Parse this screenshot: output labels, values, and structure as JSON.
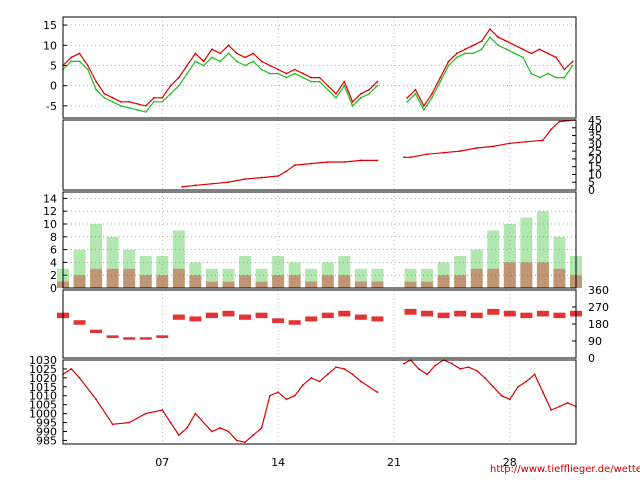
{
  "credit_text": "http://www.tiefflieger.de/wetter/",
  "colors": {
    "red": "#dd0000",
    "green": "#22bb22",
    "grid": "#999999",
    "axis": "#000000"
  },
  "x_axis": {
    "range": [
      1,
      32
    ],
    "tick_days": [
      7,
      14,
      21,
      28
    ],
    "tick_labels": [
      "07",
      "14",
      "21",
      "28"
    ]
  },
  "chart_data": [
    {
      "type": "line",
      "ylim": [
        -8,
        17
      ],
      "yticks": [
        -5,
        0,
        5,
        10,
        15
      ],
      "grid": true,
      "gap": [
        20.1,
        21.6
      ],
      "series": [
        {
          "color": "#dd0000",
          "x": [
            1,
            1.5,
            2,
            2.5,
            3,
            3.5,
            4,
            4.5,
            5,
            5.5,
            6,
            6.5,
            7,
            7.5,
            8,
            8.5,
            9,
            9.5,
            10,
            10.5,
            11,
            11.5,
            12,
            12.5,
            13,
            13.5,
            14,
            14.5,
            15,
            15.5,
            16,
            16.5,
            17,
            17.5,
            18,
            18.5,
            19,
            19.5,
            20,
            21.8,
            22.3,
            22.8,
            23.3,
            23.8,
            24.3,
            24.8,
            25.3,
            25.8,
            26.3,
            26.8,
            27.3,
            27.8,
            28.3,
            28.8,
            29.3,
            29.8,
            30.3,
            30.8,
            31.3,
            31.8
          ],
          "y": [
            5,
            7,
            8,
            5,
            1,
            -2,
            -3,
            -4,
            -4,
            -4.5,
            -5,
            -3,
            -3,
            0,
            2,
            5,
            8,
            6,
            9,
            8,
            10,
            8,
            7,
            8,
            6,
            5,
            4,
            3,
            4,
            3,
            2,
            2,
            0,
            -2,
            1,
            -4,
            -2,
            -1,
            1,
            -3,
            -1,
            -5,
            -2,
            2,
            6,
            8,
            9,
            10,
            11,
            14,
            12,
            11,
            10,
            9,
            8,
            9,
            8,
            7,
            4,
            6
          ]
        },
        {
          "color": "#22bb22",
          "x": [
            1,
            1.5,
            2,
            2.5,
            3,
            3.5,
            4,
            4.5,
            5,
            5.5,
            6,
            6.5,
            7,
            7.5,
            8,
            8.5,
            9,
            9.5,
            10,
            10.5,
            11,
            11.5,
            12,
            12.5,
            13,
            13.5,
            14,
            14.5,
            15,
            15.5,
            16,
            16.5,
            17,
            17.5,
            18,
            18.5,
            19,
            19.5,
            20,
            21.8,
            22.3,
            22.8,
            23.3,
            23.8,
            24.3,
            24.8,
            25.3,
            25.8,
            26.3,
            26.8,
            27.3,
            27.8,
            28.3,
            28.8,
            29.3,
            29.8,
            30.3,
            30.8,
            31.3,
            31.8
          ],
          "y": [
            4,
            6,
            6,
            4,
            -1,
            -3,
            -4,
            -5,
            -5.5,
            -6,
            -6.5,
            -4,
            -4,
            -2,
            0,
            3,
            6,
            5,
            7,
            6,
            8,
            6,
            5,
            6,
            4,
            3,
            3,
            2,
            3,
            2,
            1,
            1,
            -1,
            -3,
            0,
            -5,
            -3,
            -2,
            0,
            -4,
            -2,
            -6,
            -3,
            1,
            5,
            7,
            8,
            8,
            9,
            12,
            10,
            9,
            8,
            7,
            3,
            2,
            3,
            2,
            2,
            5
          ]
        }
      ]
    },
    {
      "type": "line",
      "ylim": [
        0,
        45
      ],
      "yticks": [
        0,
        5,
        10,
        15,
        20,
        25,
        30,
        35,
        40,
        45
      ],
      "grid": false,
      "gap": [
        20.1,
        21.6
      ],
      "series": [
        {
          "color": "#dd0000",
          "x": [
            8.2,
            9,
            10,
            11,
            12,
            13,
            14,
            14.5,
            15,
            16,
            17,
            18,
            19,
            20,
            21.6,
            22,
            23,
            24,
            25,
            26,
            27,
            28,
            29,
            30,
            30.5,
            31,
            31.9
          ],
          "y": [
            2,
            3,
            4,
            5,
            7,
            8,
            9,
            12,
            16,
            17,
            18,
            18,
            19,
            19,
            21,
            21,
            23,
            24,
            25,
            27,
            28,
            30,
            31,
            32,
            39,
            44,
            45
          ]
        }
      ]
    },
    {
      "type": "scatter",
      "ylim": [
        0,
        15
      ],
      "yticks": [
        0,
        2,
        4,
        6,
        8,
        10,
        12,
        14
      ],
      "grid": true,
      "gap": [
        20.1,
        21.6
      ],
      "series": [
        {
          "color": "#22bb22",
          "x": [
            1,
            2,
            3,
            4,
            5,
            6,
            7,
            8,
            9,
            10,
            11,
            12,
            13,
            14,
            15,
            16,
            17,
            18,
            19,
            20,
            22,
            23,
            24,
            25,
            26,
            27,
            28,
            29,
            30,
            31,
            32
          ],
          "y": [
            3,
            6,
            10,
            8,
            6,
            5,
            5,
            9,
            4,
            3,
            3,
            5,
            3,
            5,
            4,
            3,
            4,
            5,
            3,
            3,
            3,
            3,
            4,
            5,
            6,
            9,
            10,
            11,
            12,
            8,
            5
          ]
        },
        {
          "color": "#dd0000",
          "x": [
            1,
            2,
            3,
            4,
            5,
            6,
            7,
            8,
            9,
            10,
            11,
            12,
            13,
            14,
            15,
            16,
            17,
            18,
            19,
            20,
            22,
            23,
            24,
            25,
            26,
            27,
            28,
            29,
            30,
            31,
            32
          ],
          "y": [
            1,
            2,
            3,
            3,
            3,
            2,
            2,
            3,
            2,
            1,
            1,
            2,
            1,
            2,
            2,
            1,
            2,
            2,
            1,
            1,
            1,
            1,
            2,
            2,
            3,
            3,
            4,
            4,
            4,
            3,
            2
          ]
        }
      ]
    },
    {
      "type": "scatter",
      "ylim": [
        0,
        360
      ],
      "yticks": [
        0,
        90,
        180,
        270,
        360
      ],
      "grid": false,
      "gap": [
        20.1,
        21.6
      ],
      "series": [
        {
          "color": "#dd0000",
          "x": [
            1,
            2,
            3,
            4,
            5,
            6,
            7,
            8,
            9,
            10,
            11,
            12,
            13,
            14,
            15,
            16,
            17,
            18,
            19,
            20,
            22,
            23,
            24,
            25,
            26,
            27,
            28,
            29,
            30,
            31,
            32
          ],
          "y": [
            240,
            200,
            150,
            120,
            110,
            110,
            120,
            230,
            220,
            240,
            250,
            230,
            240,
            210,
            200,
            220,
            240,
            250,
            230,
            220,
            260,
            250,
            240,
            250,
            240,
            260,
            250,
            240,
            250,
            240,
            250
          ]
        }
      ]
    },
    {
      "type": "line",
      "ylim": [
        983,
        1030
      ],
      "yticks": [
        985,
        990,
        995,
        1000,
        1005,
        1010,
        1015,
        1020,
        1025,
        1030
      ],
      "grid": false,
      "gap": [
        20.1,
        21.6
      ],
      "series": [
        {
          "color": "#dd0000",
          "x": [
            1,
            1.5,
            2,
            3,
            4,
            5,
            6,
            7,
            7.5,
            8,
            8.5,
            9,
            10,
            10.5,
            11,
            11.5,
            12,
            12.5,
            13,
            13.5,
            14,
            14.5,
            15,
            15.5,
            16,
            16.5,
            17,
            17.5,
            18,
            18.5,
            19,
            20,
            21.6,
            22,
            22.5,
            23,
            23.5,
            24,
            24.5,
            25,
            25.5,
            26,
            26.5,
            27,
            27.5,
            28,
            28.5,
            29,
            29.5,
            30,
            30.5,
            31,
            31.5,
            32
          ],
          "y": [
            1022,
            1025,
            1020,
            1008,
            994,
            995,
            1000,
            1002,
            995,
            988,
            992,
            1000,
            990,
            992,
            990,
            985,
            984,
            988,
            992,
            1010,
            1012,
            1008,
            1010,
            1016,
            1020,
            1018,
            1022,
            1026,
            1025,
            1022,
            1018,
            1012,
            1028,
            1030,
            1025,
            1022,
            1027,
            1030,
            1028,
            1025,
            1026,
            1024,
            1020,
            1015,
            1010,
            1008,
            1015,
            1018,
            1022,
            1012,
            1002,
            1004,
            1006,
            1004
          ]
        }
      ]
    }
  ]
}
